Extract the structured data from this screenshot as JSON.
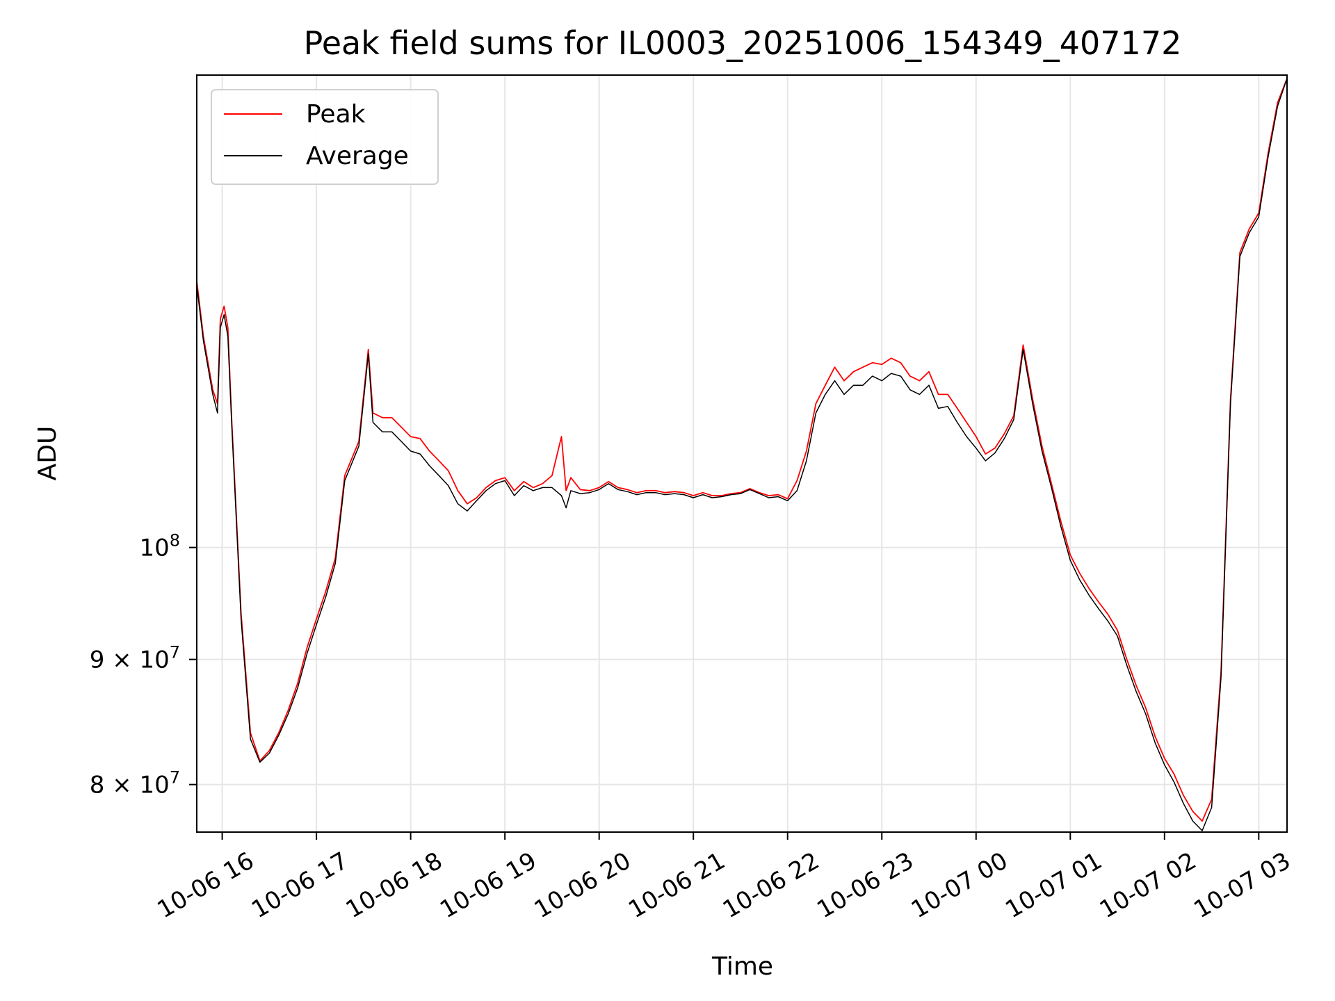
{
  "chart_data": {
    "type": "line",
    "title": "Peak field sums for IL0003_20251006_154349_407172",
    "xlabel": "Time",
    "ylabel": "ADU",
    "scale": {
      "y": "log"
    },
    "grid": true,
    "legend_location": "top-left",
    "xlim_hours": [
      15.73,
      27.3
    ],
    "ylim": [
      76500000,
      156000000
    ],
    "x_ticks": [
      {
        "hour": 16,
        "label": "10-06 16"
      },
      {
        "hour": 17,
        "label": "10-06 17"
      },
      {
        "hour": 18,
        "label": "10-06 18"
      },
      {
        "hour": 19,
        "label": "10-06 19"
      },
      {
        "hour": 20,
        "label": "10-06 20"
      },
      {
        "hour": 21,
        "label": "10-06 21"
      },
      {
        "hour": 22,
        "label": "10-06 22"
      },
      {
        "hour": 23,
        "label": "10-06 23"
      },
      {
        "hour": 24,
        "label": "10-07 00"
      },
      {
        "hour": 25,
        "label": "10-07 01"
      },
      {
        "hour": 26,
        "label": "10-07 02"
      },
      {
        "hour": 27,
        "label": "10-07 03"
      }
    ],
    "y_ticks": [
      {
        "value": 80000000,
        "base": "8 × 10",
        "exp": "7"
      },
      {
        "value": 90000000,
        "base": "9 × 10",
        "exp": "7"
      },
      {
        "value": 100000000,
        "base": "10",
        "exp": "8"
      }
    ],
    "series": [
      {
        "name": "Peak",
        "color": "#ff0000",
        "x": [
          15.73,
          15.8,
          15.9,
          15.95,
          15.98,
          16.02,
          16.06,
          16.1,
          16.2,
          16.3,
          16.4,
          16.5,
          16.6,
          16.7,
          16.8,
          16.9,
          17.0,
          17.1,
          17.2,
          17.3,
          17.45,
          17.55,
          17.6,
          17.7,
          17.8,
          17.9,
          18.0,
          18.1,
          18.2,
          18.3,
          18.4,
          18.5,
          18.6,
          18.7,
          18.8,
          18.9,
          19.0,
          19.1,
          19.2,
          19.3,
          19.4,
          19.5,
          19.6,
          19.65,
          19.7,
          19.8,
          19.9,
          20.0,
          20.1,
          20.2,
          20.3,
          20.4,
          20.5,
          20.6,
          20.7,
          20.8,
          20.9,
          21.0,
          21.1,
          21.2,
          21.3,
          21.4,
          21.5,
          21.6,
          21.7,
          21.8,
          21.9,
          22.0,
          22.1,
          22.2,
          22.3,
          22.4,
          22.5,
          22.6,
          22.7,
          22.8,
          22.9,
          23.0,
          23.1,
          23.2,
          23.3,
          23.4,
          23.5,
          23.6,
          23.7,
          23.8,
          23.9,
          24.0,
          24.1,
          24.2,
          24.3,
          24.4,
          24.5,
          24.6,
          24.7,
          24.8,
          24.9,
          25.0,
          25.1,
          25.2,
          25.3,
          25.4,
          25.5,
          25.6,
          25.7,
          25.8,
          25.9,
          26.0,
          26.1,
          26.2,
          26.3,
          26.4,
          26.5,
          26.6,
          26.7,
          26.8,
          26.9,
          27.0,
          27.1,
          27.2,
          27.3
        ],
        "values": [
          128500000,
          122000000,
          116000000,
          114500000,
          124000000,
          125500000,
          123000000,
          113000000,
          94000000,
          84000000,
          81800000,
          82600000,
          84000000,
          85800000,
          88000000,
          91000000,
          93500000,
          96000000,
          99000000,
          107000000,
          110500000,
          120500000,
          113500000,
          113000000,
          113000000,
          112000000,
          111000000,
          110800000,
          109500000,
          108500000,
          107500000,
          105500000,
          104200000,
          104800000,
          105800000,
          106500000,
          106800000,
          105500000,
          106400000,
          105800000,
          106200000,
          107000000,
          111000000,
          105500000,
          106800000,
          105600000,
          105500000,
          105800000,
          106400000,
          105800000,
          105600000,
          105300000,
          105500000,
          105500000,
          105300000,
          105400000,
          105300000,
          105000000,
          105300000,
          105000000,
          105000000,
          105200000,
          105300000,
          105700000,
          105300000,
          105000000,
          105100000,
          104700000,
          106500000,
          109500000,
          114500000,
          116500000,
          118500000,
          117000000,
          118000000,
          118500000,
          119000000,
          118800000,
          119500000,
          119000000,
          117500000,
          117000000,
          118000000,
          115500000,
          115500000,
          114000000,
          112500000,
          111000000,
          109200000,
          109800000,
          111300000,
          113200000,
          121000000,
          115000000,
          110000000,
          106200000,
          102500000,
          99300000,
          97600000,
          96200000,
          95000000,
          93900000,
          92500000,
          90000000,
          87800000,
          86000000,
          83700000,
          82000000,
          80800000,
          79200000,
          78000000,
          77300000,
          78900000,
          89000000,
          115000000,
          132000000,
          135000000,
          137000000,
          145000000,
          152000000,
          155500000
        ]
      },
      {
        "name": "Average",
        "color": "#000000",
        "x": [
          15.73,
          15.8,
          15.9,
          15.95,
          15.98,
          16.02,
          16.06,
          16.1,
          16.2,
          16.3,
          16.4,
          16.5,
          16.6,
          16.7,
          16.8,
          16.9,
          17.0,
          17.1,
          17.2,
          17.3,
          17.45,
          17.55,
          17.6,
          17.7,
          17.8,
          17.9,
          18.0,
          18.1,
          18.2,
          18.3,
          18.4,
          18.5,
          18.6,
          18.7,
          18.8,
          18.9,
          19.0,
          19.1,
          19.2,
          19.3,
          19.4,
          19.5,
          19.6,
          19.65,
          19.7,
          19.8,
          19.9,
          20.0,
          20.1,
          20.2,
          20.3,
          20.4,
          20.5,
          20.6,
          20.7,
          20.8,
          20.9,
          21.0,
          21.1,
          21.2,
          21.3,
          21.4,
          21.5,
          21.6,
          21.7,
          21.8,
          21.9,
          22.0,
          22.1,
          22.2,
          22.3,
          22.4,
          22.5,
          22.6,
          22.7,
          22.8,
          22.9,
          23.0,
          23.1,
          23.2,
          23.3,
          23.4,
          23.5,
          23.6,
          23.7,
          23.8,
          23.9,
          24.0,
          24.1,
          24.2,
          24.3,
          24.4,
          24.5,
          24.6,
          24.7,
          24.8,
          24.9,
          25.0,
          25.1,
          25.2,
          25.3,
          25.4,
          25.5,
          25.6,
          25.7,
          25.8,
          25.9,
          26.0,
          26.1,
          26.2,
          26.3,
          26.4,
          26.5,
          26.6,
          26.7,
          26.8,
          26.9,
          27.0,
          27.1,
          27.2,
          27.3
        ],
        "values": [
          128000000,
          121500000,
          115500000,
          113500000,
          123000000,
          124500000,
          122000000,
          112500000,
          93500000,
          83500000,
          81700000,
          82400000,
          83800000,
          85500000,
          87600000,
          90500000,
          93000000,
          95500000,
          98500000,
          106500000,
          110000000,
          120000000,
          112500000,
          111500000,
          111500000,
          110500000,
          109500000,
          109200000,
          108000000,
          107000000,
          106000000,
          104200000,
          103500000,
          104500000,
          105500000,
          106200000,
          106500000,
          105000000,
          106000000,
          105500000,
          105800000,
          105800000,
          105000000,
          103800000,
          105500000,
          105200000,
          105300000,
          105600000,
          106200000,
          105600000,
          105400000,
          105100000,
          105300000,
          105300000,
          105100000,
          105200000,
          105100000,
          104800000,
          105100000,
          104800000,
          104900000,
          105100000,
          105200000,
          105600000,
          105200000,
          104800000,
          104900000,
          104500000,
          105500000,
          108500000,
          113500000,
          115500000,
          117000000,
          115500000,
          116500000,
          116500000,
          117500000,
          117000000,
          117800000,
          117500000,
          116000000,
          115500000,
          116500000,
          114000000,
          114200000,
          112500000,
          111000000,
          109800000,
          108500000,
          109300000,
          110800000,
          112800000,
          120500000,
          114500000,
          109500000,
          105800000,
          102000000,
          98800000,
          97000000,
          95600000,
          94400000,
          93300000,
          92000000,
          89500000,
          87300000,
          85500000,
          83200000,
          81500000,
          80200000,
          78600000,
          77300000,
          76600000,
          78300000,
          88500000,
          114500000,
          131500000,
          134500000,
          136500000,
          144500000,
          151500000,
          155500000
        ]
      }
    ]
  }
}
